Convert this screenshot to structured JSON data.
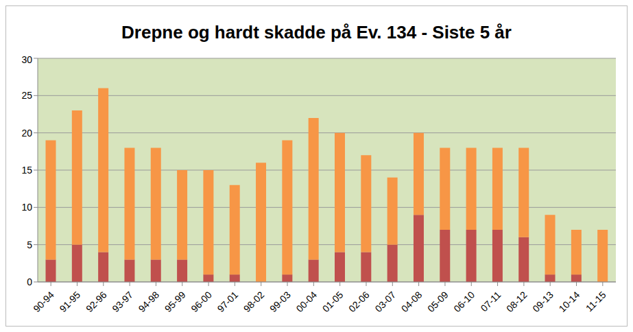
{
  "chart_data": {
    "type": "bar",
    "title": "Drepne og hardt skadde på Ev. 134 - Siste 5 år",
    "categories": [
      "90-94",
      "91-95",
      "92-96",
      "93-97",
      "94-98",
      "95-99",
      "96-00",
      "97-01",
      "98-02",
      "99-03",
      "00-04",
      "01-05",
      "02-06",
      "03-07",
      "04-08",
      "05-09",
      "06-10",
      "07-11",
      "08-12",
      "09-13",
      "10-14",
      "11-15"
    ],
    "series": [
      {
        "color": "#c0504d",
        "values": [
          3,
          5,
          4,
          3,
          3,
          3,
          1,
          1,
          0,
          1,
          3,
          4,
          4,
          5,
          9,
          7,
          7,
          7,
          6,
          1,
          1,
          0
        ]
      },
      {
        "color": "#f79646",
        "values": [
          16,
          18,
          22,
          15,
          15,
          12,
          14,
          12,
          16,
          18,
          19,
          16,
          13,
          9,
          11,
          11,
          11,
          11,
          12,
          8,
          6,
          7
        ]
      }
    ],
    "stacked": true,
    "grid": true,
    "ylim": [
      0,
      30
    ],
    "yticks": [
      0,
      5,
      10,
      15,
      20,
      25,
      30
    ]
  }
}
